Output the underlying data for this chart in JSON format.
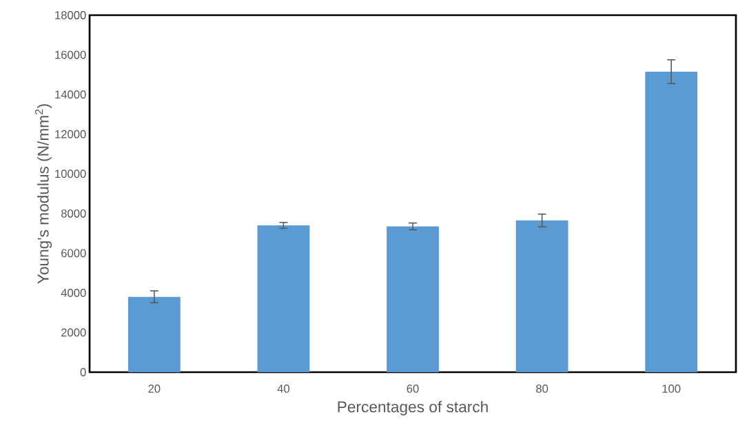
{
  "chart_data": {
    "type": "bar",
    "xlabel": "Percentages of starch",
    "ylabel": "Young's modulus (N/mm$^{2}$)",
    "categories": [
      "20",
      "40",
      "60",
      "80",
      "100"
    ],
    "values": [
      3800,
      7400,
      7350,
      7650,
      15150
    ],
    "errors": [
      300,
      150,
      170,
      320,
      600
    ],
    "color": "#5b9bd5",
    "ylim": [
      0,
      18000
    ],
    "yticks": [
      0,
      2000,
      4000,
      6000,
      8000,
      10000,
      12000,
      14000,
      16000,
      18000
    ],
    "grid": false
  }
}
